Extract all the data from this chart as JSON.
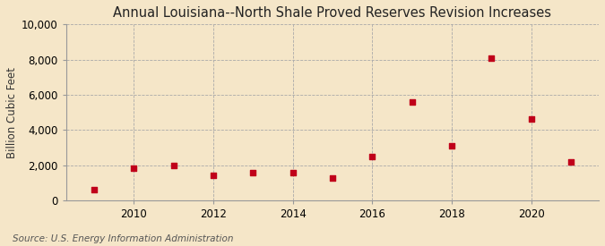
{
  "title": "Annual Louisiana--North Shale Proved Reserves Revision Increases",
  "ylabel": "Billion Cubic Feet",
  "source": "Source: U.S. Energy Information Administration",
  "background_color": "#f5e6c8",
  "years": [
    2009,
    2010,
    2011,
    2012,
    2013,
    2014,
    2015,
    2016,
    2017,
    2018,
    2019,
    2020,
    2021
  ],
  "values": [
    600,
    1850,
    2000,
    1400,
    1600,
    1600,
    1250,
    2500,
    5600,
    3100,
    8100,
    4650,
    2200
  ],
  "marker_color": "#c0001a",
  "marker_size": 4,
  "ylim": [
    0,
    10000
  ],
  "yticks": [
    0,
    2000,
    4000,
    6000,
    8000,
    10000
  ],
  "ytick_labels": [
    "0",
    "2,000",
    "4,000",
    "6,000",
    "8,000",
    "10,000"
  ],
  "xticks": [
    2010,
    2012,
    2014,
    2016,
    2018,
    2020
  ],
  "xlim": [
    2008.3,
    2021.7
  ],
  "grid_color": "#aaaaaa",
  "title_fontsize": 10.5,
  "axis_fontsize": 8.5,
  "source_fontsize": 7.5
}
